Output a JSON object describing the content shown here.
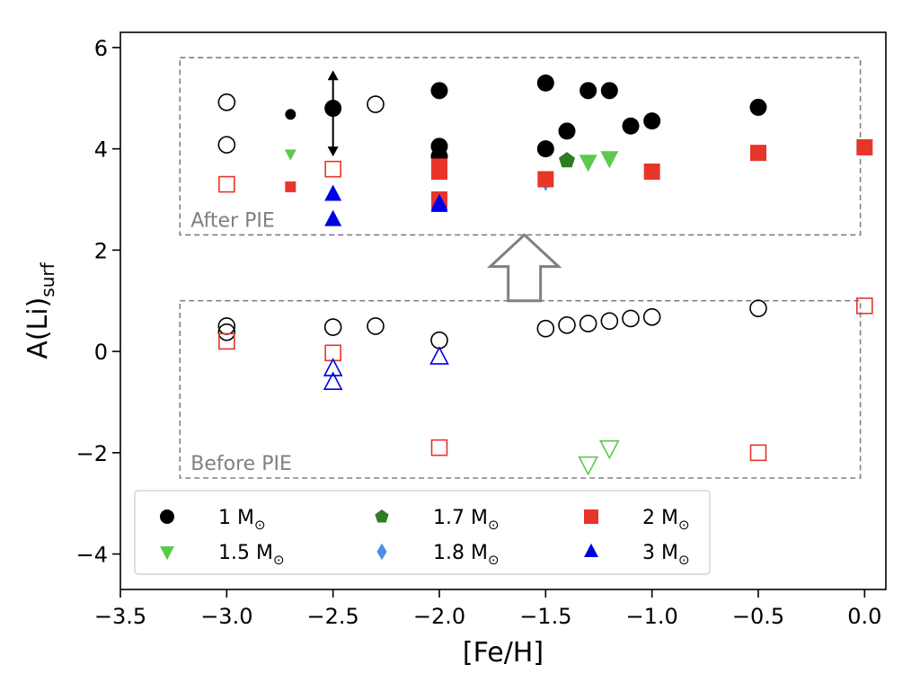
{
  "chart_data": {
    "type": "scatter",
    "title": "",
    "xlabel": "[Fe/H]",
    "ylabel_main": "A(Li)",
    "ylabel_sub": "surf",
    "xlim": [
      -3.5,
      0.1
    ],
    "ylim": [
      -4.7,
      6.3
    ],
    "xticks": [
      -3.5,
      -3.0,
      -2.5,
      -2.0,
      -1.5,
      -1.0,
      -0.5,
      0.0
    ],
    "xtick_labels": [
      "−3.5",
      "−3.0",
      "−2.5",
      "−2.0",
      "−1.5",
      "−1.0",
      "−0.5",
      "0.0"
    ],
    "yticks": [
      6,
      4,
      2,
      0,
      -2,
      -4
    ],
    "ytick_labels": [
      "6",
      "4",
      "2",
      "0",
      "−2",
      "−4"
    ],
    "grid": false,
    "legend_position": "bottom-left",
    "annotations": {
      "after_box": {
        "label": "After PIE",
        "x_range": [
          -3.22,
          -0.02
        ],
        "y_range": [
          2.3,
          5.8
        ]
      },
      "before_box": {
        "label": "Before PIE",
        "x_range": [
          -3.22,
          -0.02
        ],
        "y_range": [
          -2.5,
          1.0
        ]
      },
      "arrow_up": {
        "x": -1.6,
        "y_range": [
          1.0,
          2.3
        ]
      },
      "range_marker": {
        "x": -2.5,
        "y_range": [
          3.85,
          5.55
        ]
      }
    },
    "series": [
      {
        "name": "1 M",
        "marker": "circle",
        "color": "#000000",
        "after": [
          [
            -2.7,
            4.68
          ],
          [
            -2.5,
            4.8
          ],
          [
            -2.0,
            5.15
          ],
          [
            -2.0,
            4.05
          ],
          [
            -2.0,
            3.85
          ],
          [
            -1.5,
            5.3
          ],
          [
            -1.5,
            4.0
          ],
          [
            -1.4,
            4.35
          ],
          [
            -1.3,
            5.15
          ],
          [
            -1.2,
            5.15
          ],
          [
            -1.1,
            4.45
          ],
          [
            -1.0,
            4.55
          ],
          [
            -0.5,
            4.82
          ]
        ],
        "after_open": [
          [
            -3.0,
            4.92
          ],
          [
            -3.0,
            4.08
          ],
          [
            -2.3,
            4.88
          ]
        ],
        "before": [
          [
            -3.0,
            0.5
          ],
          [
            -3.0,
            0.38
          ],
          [
            -2.5,
            0.48
          ],
          [
            -2.3,
            0.5
          ],
          [
            -2.0,
            0.22
          ],
          [
            -1.5,
            0.45
          ],
          [
            -1.4,
            0.52
          ],
          [
            -1.3,
            0.55
          ],
          [
            -1.2,
            0.6
          ],
          [
            -1.1,
            0.65
          ],
          [
            -1.0,
            0.68
          ],
          [
            -0.5,
            0.85
          ]
        ]
      },
      {
        "name": "1.5 M",
        "marker": "triangle-down",
        "color": "#5cc94d",
        "after": [
          [
            -2.7,
            3.9
          ],
          [
            -1.3,
            3.75
          ],
          [
            -1.2,
            3.82
          ]
        ],
        "before": [
          [
            -1.3,
            -2.22
          ],
          [
            -1.2,
            -1.9
          ]
        ]
      },
      {
        "name": "1.7 M",
        "marker": "pentagon",
        "color": "#2e7d22",
        "after": [
          [
            -1.4,
            3.77
          ]
        ],
        "before": []
      },
      {
        "name": "1.8 M",
        "marker": "diamond",
        "color": "#4a90e2",
        "after": [
          [
            -1.5,
            3.3
          ]
        ],
        "before": []
      },
      {
        "name": "2 M",
        "marker": "square",
        "color": "#e8352a",
        "after": [
          [
            -2.7,
            3.25
          ],
          [
            -2.0,
            3.65
          ],
          [
            -2.0,
            3.55
          ],
          [
            -2.0,
            3.0
          ],
          [
            -1.5,
            3.4
          ],
          [
            -1.0,
            3.55
          ],
          [
            -0.5,
            3.92
          ],
          [
            0.0,
            4.03
          ]
        ],
        "after_open": [
          [
            -3.0,
            3.3
          ],
          [
            -2.5,
            3.6
          ]
        ],
        "before": [
          [
            -3.0,
            0.2
          ],
          [
            -2.5,
            -0.03
          ],
          [
            -2.0,
            -1.9
          ],
          [
            -0.5,
            -2.0
          ],
          [
            0.0,
            0.9
          ]
        ]
      },
      {
        "name": "3 M",
        "marker": "triangle-up",
        "color": "#0000e6",
        "after": [
          [
            -2.5,
            3.1
          ],
          [
            -2.5,
            2.6
          ],
          [
            -2.0,
            2.92
          ],
          [
            -2.0,
            2.88
          ]
        ],
        "before": [
          [
            -2.5,
            -0.35
          ],
          [
            -2.5,
            -0.62
          ],
          [
            -2.0,
            -0.12
          ]
        ]
      }
    ],
    "legend": [
      {
        "label": "1 M",
        "marker": "circle",
        "color": "#000000"
      },
      {
        "label": "1.7 M",
        "marker": "pentagon",
        "color": "#2e7d22"
      },
      {
        "label": "2 M",
        "marker": "square",
        "color": "#e8352a"
      },
      {
        "label": "1.5 M",
        "marker": "triangle-down",
        "color": "#5cc94d"
      },
      {
        "label": "1.8 M",
        "marker": "diamond",
        "color": "#4a90e2"
      },
      {
        "label": "3 M",
        "marker": "triangle-up",
        "color": "#0000e6"
      }
    ],
    "legend_sun_symbol": "⊙"
  }
}
